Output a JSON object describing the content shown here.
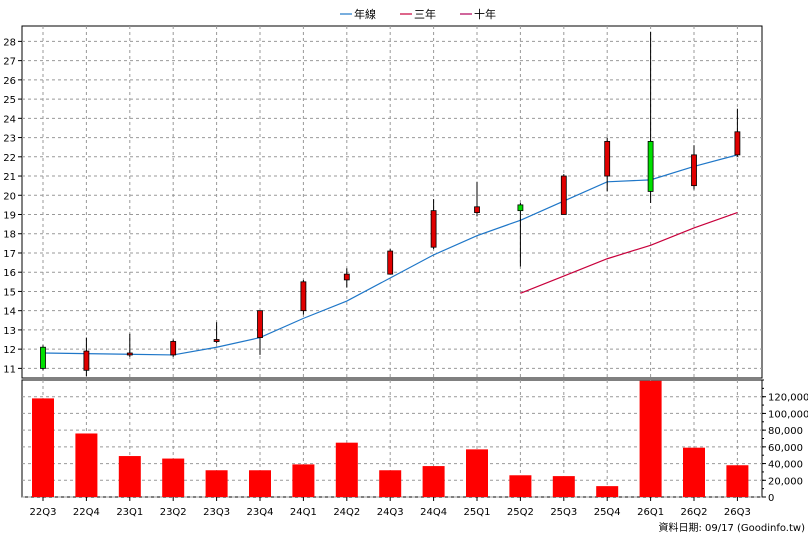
{
  "chart_data": {
    "type": "candlestick",
    "legend": [
      {
        "name": "年線",
        "color": "#1f77c8"
      },
      {
        "name": "三年",
        "color": "#c8003c"
      },
      {
        "name": "十年",
        "color": "#b0005a"
      }
    ],
    "categories": [
      "22Q3",
      "22Q4",
      "23Q1",
      "23Q2",
      "23Q3",
      "23Q4",
      "24Q1",
      "24Q2",
      "24Q3",
      "24Q4",
      "25Q1",
      "25Q2",
      "25Q3",
      "25Q4",
      "26Q1",
      "26Q2",
      "26Q3"
    ],
    "price": {
      "ylim": [
        10.5,
        28.8
      ],
      "yticks": [
        11,
        12,
        13,
        14,
        15,
        16,
        17,
        18,
        19,
        20,
        21,
        22,
        23,
        24,
        25,
        26,
        27,
        28
      ],
      "candles": [
        {
          "open": 11.0,
          "high": 12.2,
          "low": 10.9,
          "close": 12.1,
          "color": "green"
        },
        {
          "open": 11.9,
          "high": 12.6,
          "low": 10.6,
          "close": 10.9,
          "color": "red"
        },
        {
          "open": 11.7,
          "high": 12.8,
          "low": 11.6,
          "close": 11.8,
          "color": "red"
        },
        {
          "open": 11.7,
          "high": 12.5,
          "low": 11.6,
          "close": 12.4,
          "color": "red"
        },
        {
          "open": 12.5,
          "high": 13.4,
          "low": 12.3,
          "close": 12.5,
          "color": "red"
        },
        {
          "open": 12.6,
          "high": 14.0,
          "low": 11.7,
          "close": 14.0,
          "color": "red"
        },
        {
          "open": 14.0,
          "high": 15.6,
          "low": 13.8,
          "close": 15.5,
          "color": "red"
        },
        {
          "open": 15.6,
          "high": 16.2,
          "low": 15.2,
          "close": 15.9,
          "color": "red"
        },
        {
          "open": 15.9,
          "high": 17.2,
          "low": 15.9,
          "close": 17.1,
          "color": "red"
        },
        {
          "open": 17.3,
          "high": 19.8,
          "low": 17.2,
          "close": 19.2,
          "color": "red"
        },
        {
          "open": 19.1,
          "high": 20.7,
          "low": 18.9,
          "close": 19.4,
          "color": "red"
        },
        {
          "open": 19.2,
          "high": 19.6,
          "low": 16.3,
          "close": 19.5,
          "color": "green"
        },
        {
          "open": 19.0,
          "high": 21.1,
          "low": 19.0,
          "close": 21.0,
          "color": "red"
        },
        {
          "open": 21.0,
          "high": 23.0,
          "low": 20.2,
          "close": 22.8,
          "color": "red"
        },
        {
          "open": 20.2,
          "high": 28.5,
          "low": 19.6,
          "close": 22.8,
          "color": "green"
        },
        {
          "open": 20.5,
          "high": 22.6,
          "low": 20.3,
          "close": 22.1,
          "color": "red"
        },
        {
          "open": 22.1,
          "high": 24.5,
          "low": 22.0,
          "close": 23.3,
          "color": "red"
        }
      ],
      "annual_line": [
        11.8,
        null,
        null,
        11.7,
        12.1,
        12.6,
        13.6,
        14.5,
        15.7,
        16.9,
        17.9,
        18.7,
        19.7,
        20.7,
        20.8,
        21.5,
        22.1
      ],
      "three_year_line": [
        null,
        null,
        null,
        null,
        null,
        null,
        null,
        null,
        null,
        null,
        null,
        14.9,
        15.8,
        16.7,
        17.4,
        18.3,
        19.1
      ]
    },
    "volume": {
      "ylim": [
        0,
        140000
      ],
      "yticks": [
        0,
        20000,
        40000,
        60000,
        80000,
        100000,
        120000
      ],
      "ytick_labels": [
        "0",
        "20,000",
        "40,000",
        "60,000",
        "80,000",
        "100,000",
        "120,000"
      ],
      "values": [
        118000,
        76000,
        49000,
        46000,
        32000,
        32000,
        39000,
        65000,
        32000,
        37000,
        57000,
        26000,
        25000,
        13000,
        139000,
        59000,
        38000
      ]
    },
    "footer": "資料日期: 09/17   (Goodinfo.tw)"
  }
}
